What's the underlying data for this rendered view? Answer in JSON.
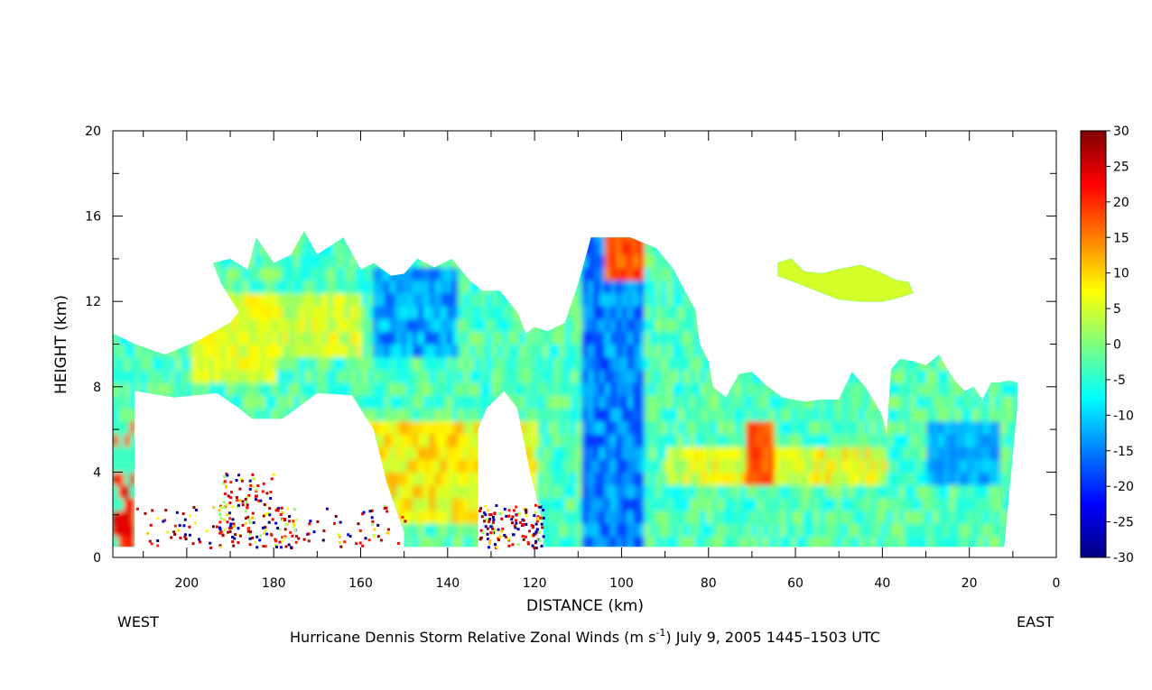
{
  "chart_data": {
    "type": "heatmap",
    "title": "Hurricane Dennis Storm Relative Zonal Winds (m s⁻¹) July 9, 2005 1445–1503 UTC",
    "title_parts": {
      "pre": "Hurricane Dennis Storm Relative Zonal Winds (m s",
      "sup": "-1",
      "post": ") July 9, 2005 1445–1503 UTC"
    },
    "xlabel": "DISTANCE (km)",
    "ylabel": "HEIGHT (km)",
    "west_label": "WEST",
    "east_label": "EAST",
    "x_reversed": true,
    "xlim": [
      217,
      0
    ],
    "ylim": [
      0,
      20
    ],
    "x_ticks": [
      200,
      180,
      160,
      140,
      120,
      100,
      80,
      60,
      40,
      20,
      0
    ],
    "y_ticks": [
      0,
      4,
      8,
      12,
      16,
      20
    ],
    "colorbar": {
      "range": [
        -30,
        30
      ],
      "ticks": [
        30,
        25,
        20,
        15,
        10,
        5,
        0,
        -5,
        -10,
        -15,
        -20,
        -25,
        -30
      ],
      "colors": [
        "#00007f",
        "#0000ff",
        "#007fff",
        "#00ffff",
        "#7fff7f",
        "#ffff00",
        "#ff7f00",
        "#ff0000",
        "#7f0000"
      ]
    },
    "regions": [
      {
        "name": "western-echo",
        "x": [
          217,
          0
        ],
        "value": -3
      },
      {
        "name": "upper-blue-core",
        "x": [
          155,
          138
        ],
        "y": [
          9,
          13
        ],
        "value": -14
      },
      {
        "name": "eyewall-updraft",
        "x": [
          108,
          98
        ],
        "y": [
          1,
          15
        ],
        "value": -16
      },
      {
        "name": "low-level-warm-bands",
        "x": [
          160,
          140
        ],
        "y": [
          2,
          5
        ],
        "value": 12
      },
      {
        "name": "east-maximum",
        "x": [
          72,
          68
        ],
        "y": [
          3,
          6
        ],
        "value": 15
      },
      {
        "name": "anvil-patch",
        "x": [
          65,
          35
        ],
        "y": [
          12,
          14
        ],
        "value": 6
      }
    ]
  }
}
